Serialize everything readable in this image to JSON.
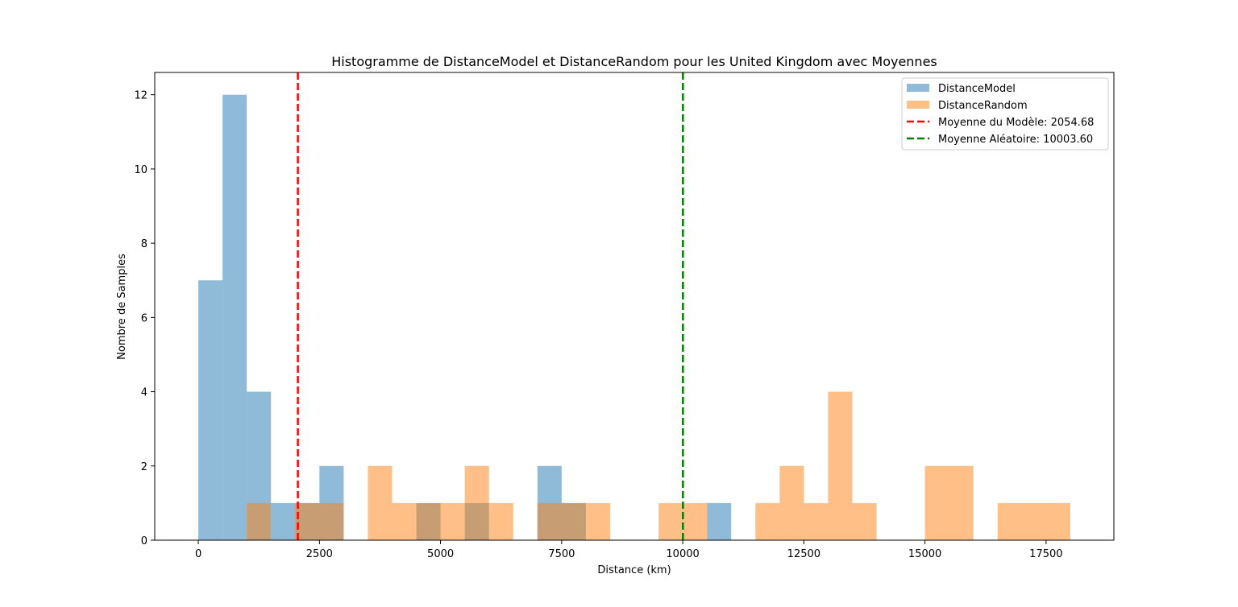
{
  "chart_data": {
    "type": "bar",
    "title": "Histogramme de DistanceModel et DistanceRandom pour les United Kingdom avec Moyennes",
    "xlabel": "Distance (km)",
    "ylabel": "Nombre de Samples",
    "xlim": [
      -900,
      18900
    ],
    "ylim": [
      0,
      12.6
    ],
    "x_ticks": [
      {
        "value": 0,
        "label": "0"
      },
      {
        "value": 2500,
        "label": "2500"
      },
      {
        "value": 5000,
        "label": "5000"
      },
      {
        "value": 7500,
        "label": "7500"
      },
      {
        "value": 10000,
        "label": "10000"
      },
      {
        "value": 12500,
        "label": "12500"
      },
      {
        "value": 15000,
        "label": "15000"
      },
      {
        "value": 17500,
        "label": "17500"
      }
    ],
    "y_ticks": [
      {
        "value": 0,
        "label": "0"
      },
      {
        "value": 2,
        "label": "2"
      },
      {
        "value": 4,
        "label": "4"
      },
      {
        "value": 6,
        "label": "6"
      },
      {
        "value": 8,
        "label": "8"
      },
      {
        "value": 10,
        "label": "10"
      },
      {
        "value": 12,
        "label": "12"
      }
    ],
    "grid": false,
    "legend_position": "top-right",
    "series": [
      {
        "name": "DistanceModel",
        "color": "#1f77b4",
        "opacity": 0.5,
        "bins": [
          {
            "x0": 0,
            "x1": 500,
            "count": 7
          },
          {
            "x0": 500,
            "x1": 1000,
            "count": 12
          },
          {
            "x0": 1000,
            "x1": 1500,
            "count": 4
          },
          {
            "x0": 1500,
            "x1": 2000,
            "count": 1
          },
          {
            "x0": 2000,
            "x1": 2500,
            "count": 1
          },
          {
            "x0": 2500,
            "x1": 3000,
            "count": 2
          },
          {
            "x0": 4500,
            "x1": 5000,
            "count": 1
          },
          {
            "x0": 5500,
            "x1": 6000,
            "count": 1
          },
          {
            "x0": 7000,
            "x1": 7500,
            "count": 2
          },
          {
            "x0": 7500,
            "x1": 8000,
            "count": 1
          },
          {
            "x0": 10500,
            "x1": 11000,
            "count": 1
          }
        ]
      },
      {
        "name": "DistanceRandom",
        "color": "#ff7f0e",
        "opacity": 0.5,
        "bins": [
          {
            "x0": 1000,
            "x1": 1500,
            "count": 1
          },
          {
            "x0": 2000,
            "x1": 3000,
            "count": 1
          },
          {
            "x0": 3500,
            "x1": 4000,
            "count": 2
          },
          {
            "x0": 4000,
            "x1": 5500,
            "count": 1
          },
          {
            "x0": 5500,
            "x1": 6000,
            "count": 2
          },
          {
            "x0": 6000,
            "x1": 6500,
            "count": 1
          },
          {
            "x0": 7000,
            "x1": 8500,
            "count": 1
          },
          {
            "x0": 9500,
            "x1": 10500,
            "count": 1
          },
          {
            "x0": 11500,
            "x1": 12000,
            "count": 1
          },
          {
            "x0": 12000,
            "x1": 12500,
            "count": 2
          },
          {
            "x0": 12500,
            "x1": 13000,
            "count": 1
          },
          {
            "x0": 13000,
            "x1": 13500,
            "count": 4
          },
          {
            "x0": 13500,
            "x1": 14000,
            "count": 1
          },
          {
            "x0": 15000,
            "x1": 16000,
            "count": 2
          },
          {
            "x0": 16500,
            "x1": 18000,
            "count": 1
          }
        ]
      }
    ],
    "mean_lines": [
      {
        "name": "Moyenne du Modèle: 2054.68",
        "value": 2054.68,
        "color": "#ff0000"
      },
      {
        "name": "Moyenne Aléatoire: 10003.60",
        "value": 10003.6,
        "color": "#008000"
      }
    ]
  }
}
